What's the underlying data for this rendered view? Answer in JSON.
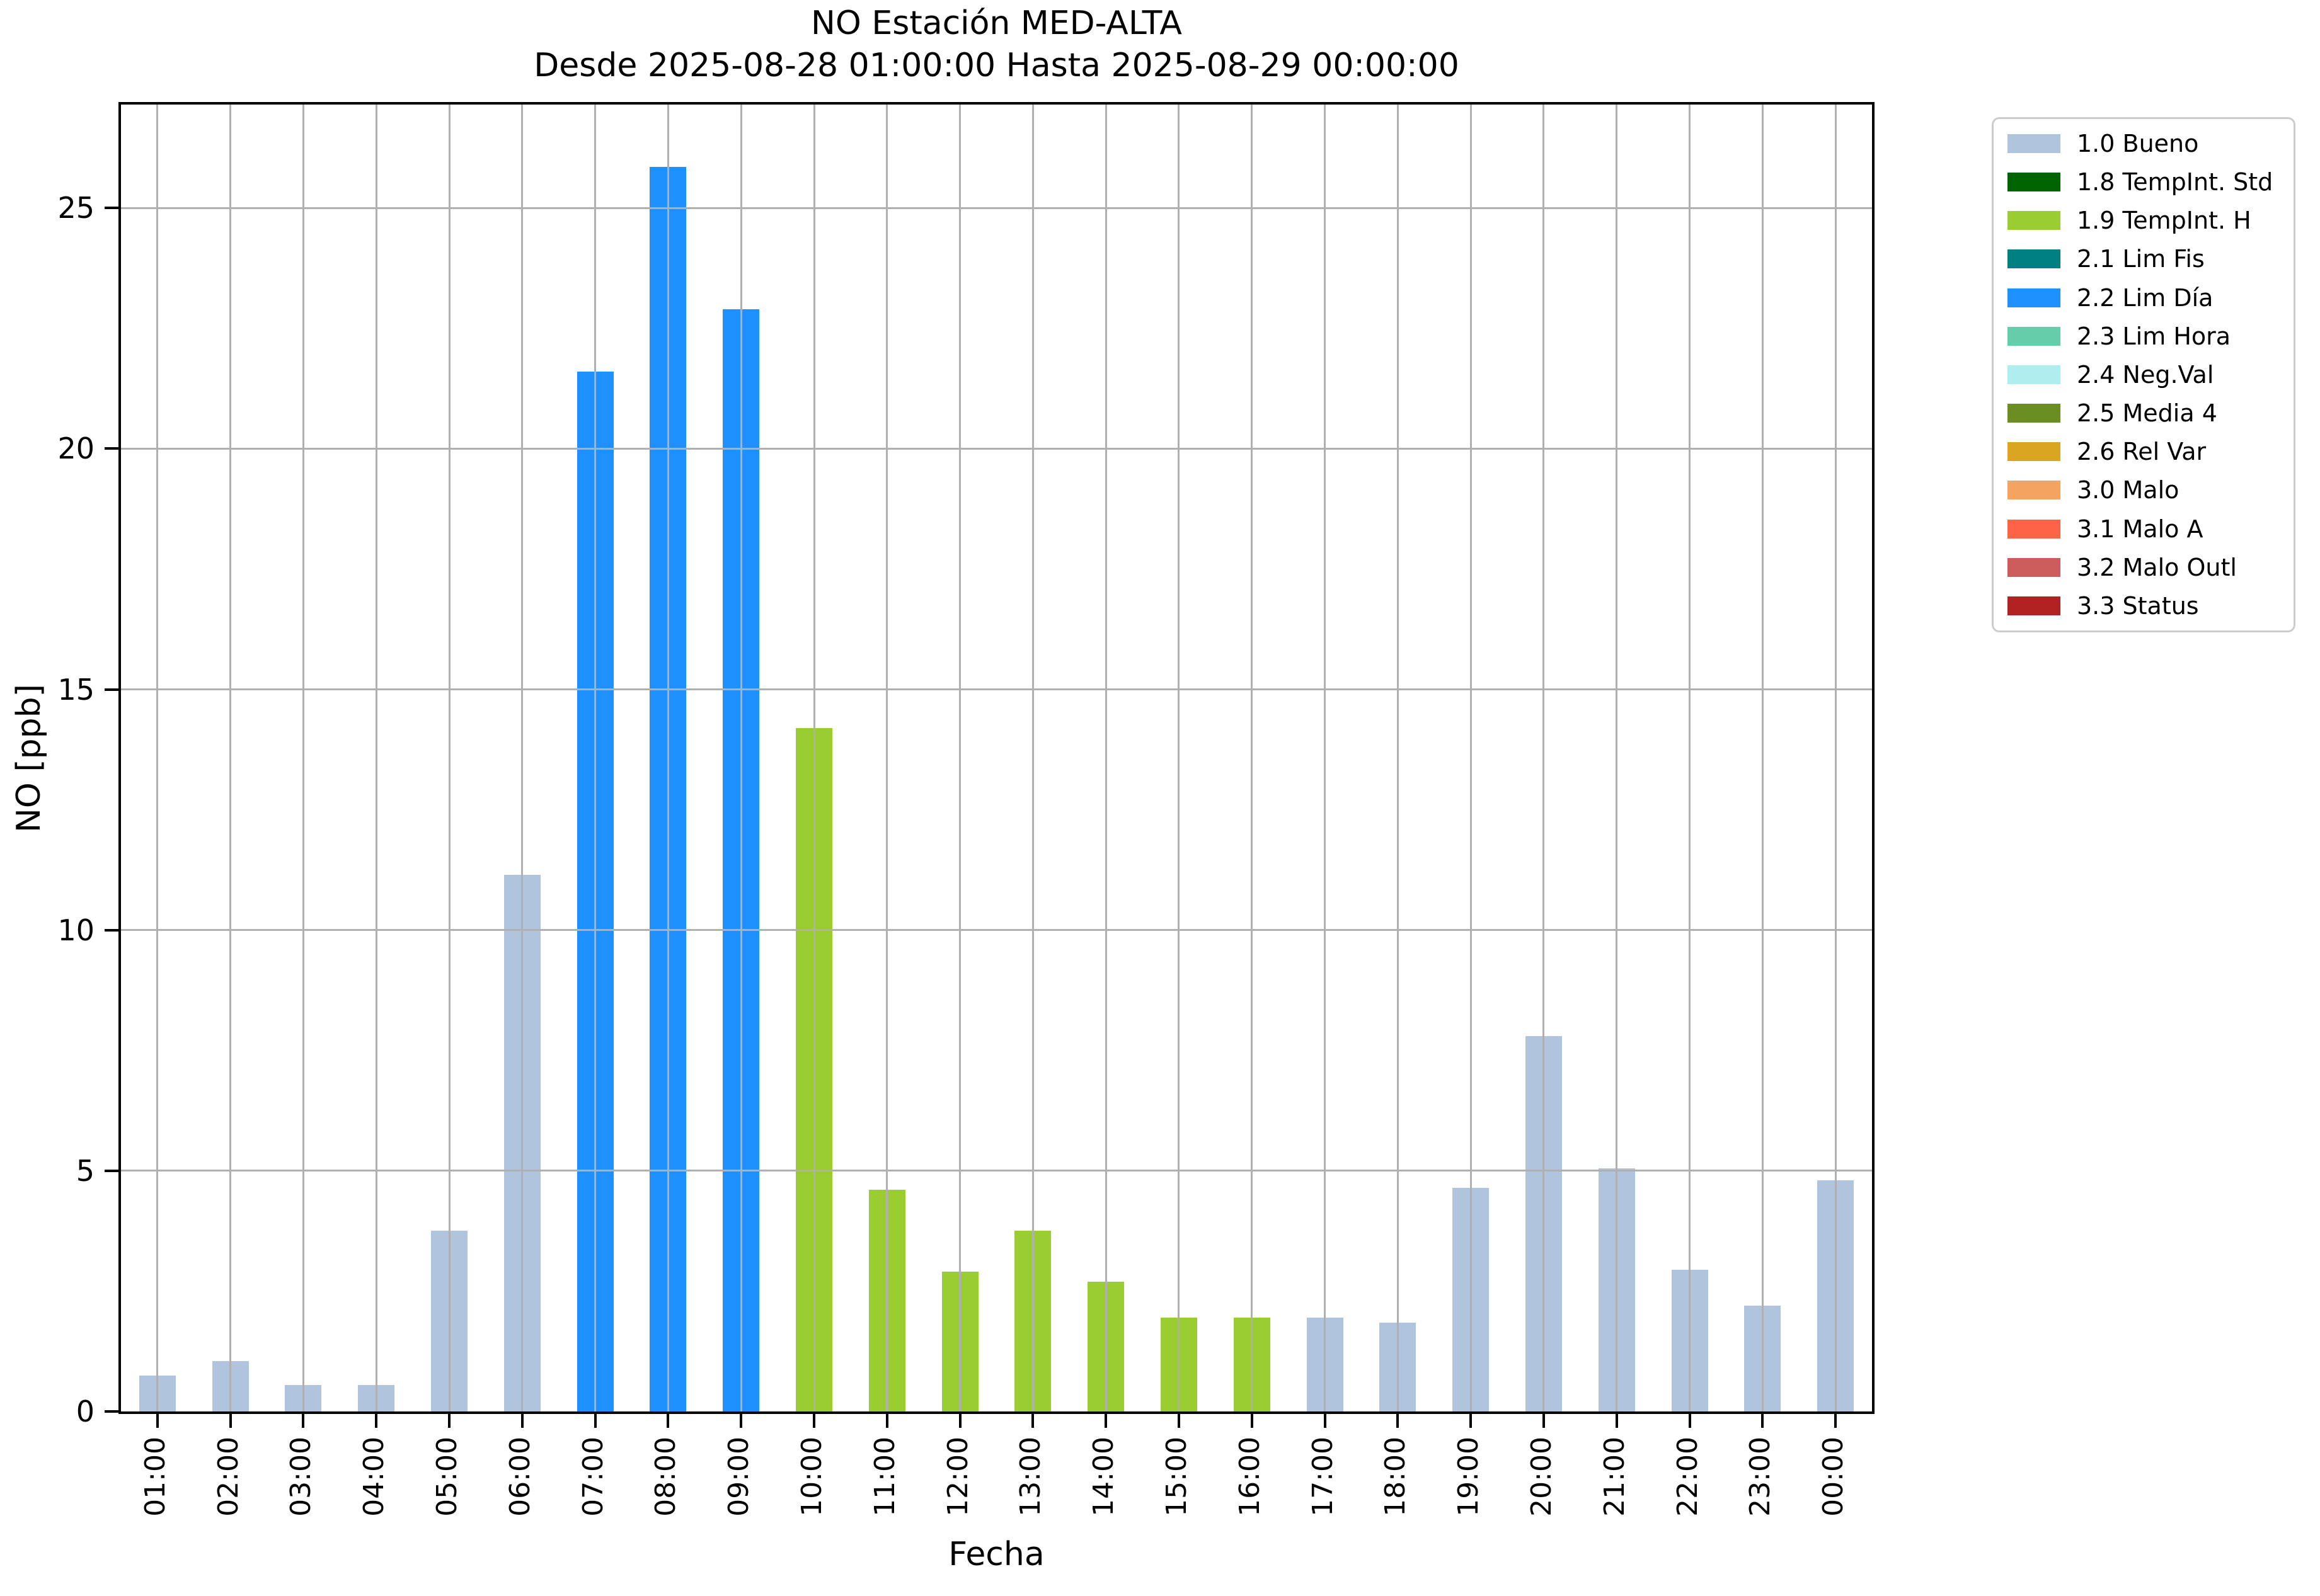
{
  "chart_data": {
    "type": "bar",
    "title": "NO Estación MED-ALTA",
    "subtitle": "Desde 2025-08-28 01:00:00 Hasta 2025-08-29 00:00:00",
    "xlabel": "Fecha",
    "ylabel": "NO [ppb]",
    "ylim": [
      0,
      27.15
    ],
    "yticks": [
      0,
      5,
      10,
      15,
      20,
      25
    ],
    "grid": true,
    "legend_position": "outside-top-right",
    "categories": [
      "01:00",
      "02:00",
      "03:00",
      "04:00",
      "05:00",
      "06:00",
      "07:00",
      "08:00",
      "09:00",
      "10:00",
      "11:00",
      "12:00",
      "13:00",
      "14:00",
      "15:00",
      "16:00",
      "17:00",
      "18:00",
      "19:00",
      "20:00",
      "21:00",
      "22:00",
      "23:00",
      "00:00"
    ],
    "values": [
      0.75,
      1.05,
      0.55,
      0.55,
      3.75,
      11.15,
      21.6,
      25.85,
      22.9,
      14.2,
      4.6,
      2.9,
      3.75,
      2.7,
      1.95,
      1.95,
      1.95,
      1.85,
      4.65,
      7.8,
      5.05,
      2.95,
      2.2,
      4.8
    ],
    "bar_status": [
      "1.0 Bueno",
      "1.0 Bueno",
      "1.0 Bueno",
      "1.0 Bueno",
      "1.0 Bueno",
      "1.0 Bueno",
      "2.2 Lim Día",
      "2.2 Lim Día",
      "2.2 Lim Día",
      "1.9 TempInt. H",
      "1.9 TempInt. H",
      "1.9 TempInt. H",
      "1.9 TempInt. H",
      "1.9 TempInt. H",
      "1.9 TempInt. H",
      "1.9 TempInt. H",
      "1.0 Bueno",
      "1.0 Bueno",
      "1.0 Bueno",
      "1.0 Bueno",
      "1.0 Bueno",
      "1.0 Bueno",
      "1.0 Bueno",
      "1.0 Bueno"
    ],
    "legend": [
      {
        "label": "1.0 Bueno",
        "color": "#b0c4de"
      },
      {
        "label": "1.8 TempInt. Std",
        "color": "#006400"
      },
      {
        "label": "1.9 TempInt. H",
        "color": "#9acd32"
      },
      {
        "label": "2.1 Lim Fis",
        "color": "#008080"
      },
      {
        "label": "2.2 Lim Día",
        "color": "#1e90ff"
      },
      {
        "label": "2.3 Lim Hora",
        "color": "#66cdaa"
      },
      {
        "label": "2.4 Neg.Val",
        "color": "#afeeee"
      },
      {
        "label": "2.5 Media 4",
        "color": "#6b8e23"
      },
      {
        "label": "2.6 Rel Var",
        "color": "#daa520"
      },
      {
        "label": "3.0 Malo",
        "color": "#f4a460"
      },
      {
        "label": "3.1 Malo A",
        "color": "#ff6347"
      },
      {
        "label": "3.2 Malo Outl",
        "color": "#cd5c5c"
      },
      {
        "label": "3.3 Status",
        "color": "#b22222"
      }
    ],
    "colors": {
      "grid": "#b0b0b0",
      "spine": "#000000",
      "legend_border": "#cccccc"
    }
  }
}
